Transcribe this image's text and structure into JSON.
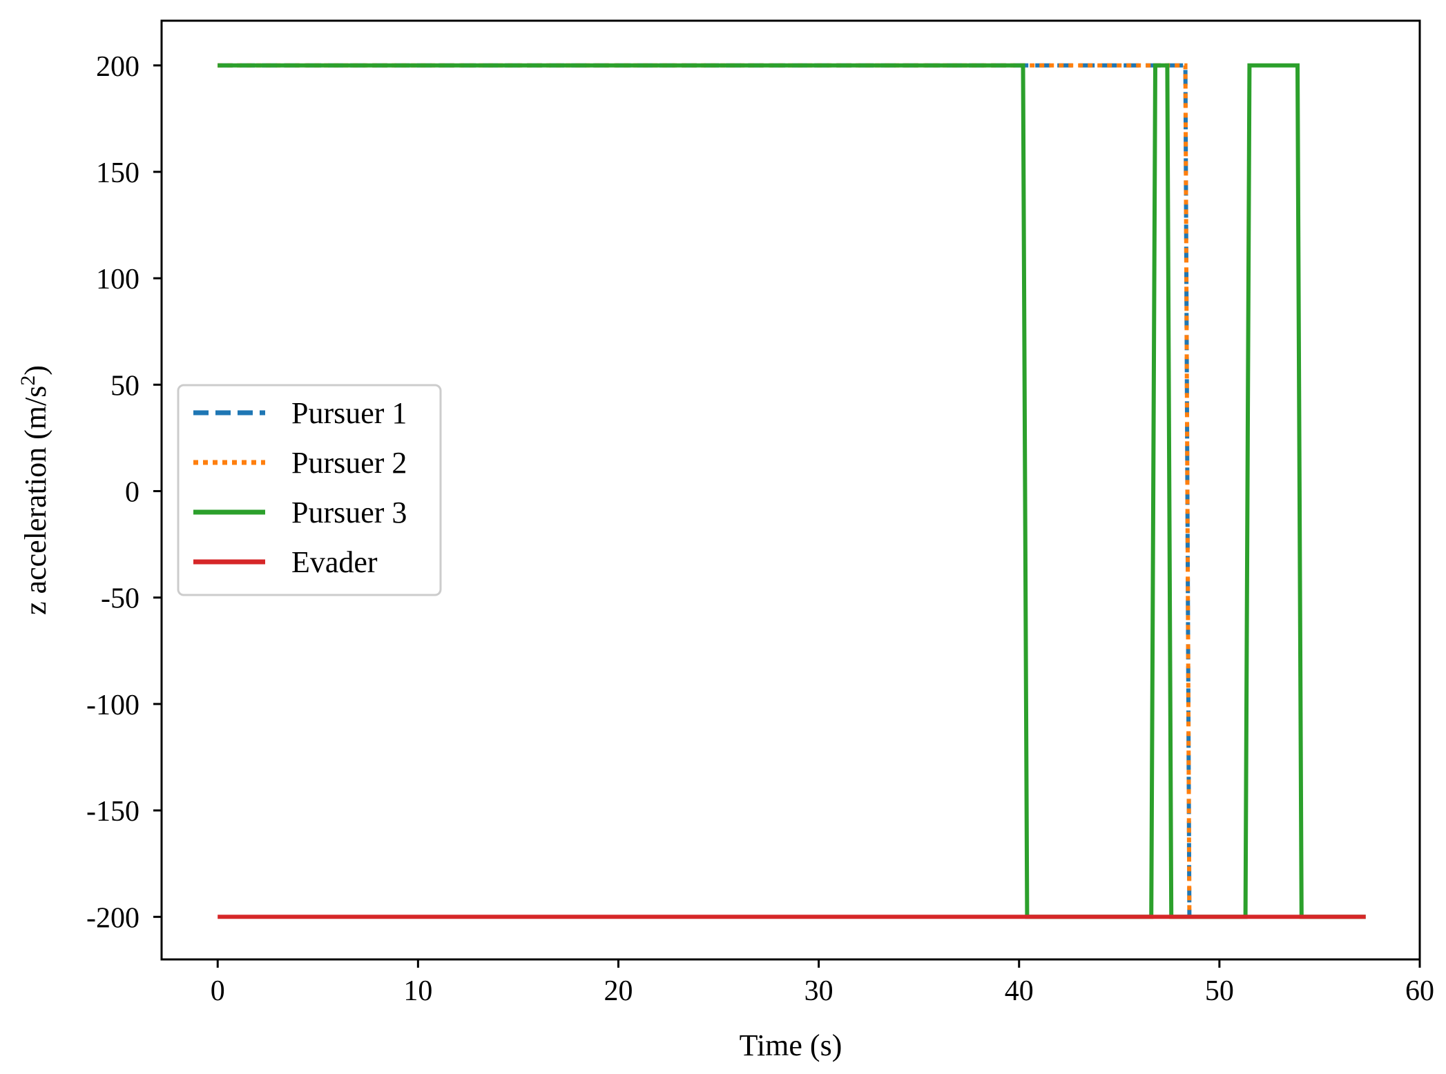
{
  "chart_data": {
    "type": "line",
    "title": "",
    "xlabel": "Time (s)",
    "ylabel_main": "z acceleration (m/s",
    "ylabel_sup": "2",
    "ylabel_close": ")",
    "xlim": [
      -2.8,
      60
    ],
    "ylim": [
      -220,
      221
    ],
    "xticks": [
      0,
      10,
      20,
      30,
      40,
      50,
      60
    ],
    "xtick_labels": [
      "0",
      "10",
      "20",
      "30",
      "40",
      "50",
      "60"
    ],
    "yticks": [
      200,
      150,
      100,
      50,
      0,
      -50,
      -100,
      -150,
      -200
    ],
    "ytick_labels": [
      "200",
      "150",
      "100",
      "50",
      "0",
      "-50",
      "-100",
      "-150",
      "-200"
    ],
    "grid": false,
    "legend_position": "center-left",
    "series": [
      {
        "name": "Pursuer 1",
        "color": "#1f77b4",
        "style": "dashed",
        "x": [
          0,
          40.3,
          40.5,
          48.3,
          48.5
        ],
        "y": [
          200,
          200,
          200,
          200,
          -200
        ]
      },
      {
        "name": "Pursuer 2",
        "color": "#ff7f0e",
        "style": "dotted",
        "x": [
          0,
          40.3,
          40.5,
          48.3,
          48.5
        ],
        "y": [
          200,
          200,
          200,
          200,
          -200
        ]
      },
      {
        "name": "Pursuer 3",
        "color": "#2ca02c",
        "style": "solid",
        "x": [
          0,
          40.2,
          40.4,
          46.6,
          46.8,
          47.4,
          47.6,
          51.3,
          51.5,
          53.9,
          54.1,
          57.3
        ],
        "y": [
          200,
          200,
          -200,
          -200,
          200,
          200,
          -200,
          -200,
          200,
          200,
          -200,
          -200
        ]
      },
      {
        "name": "Evader",
        "color": "#d62728",
        "style": "solid",
        "x": [
          0,
          57.3
        ],
        "y": [
          -200,
          -200
        ]
      }
    ]
  }
}
